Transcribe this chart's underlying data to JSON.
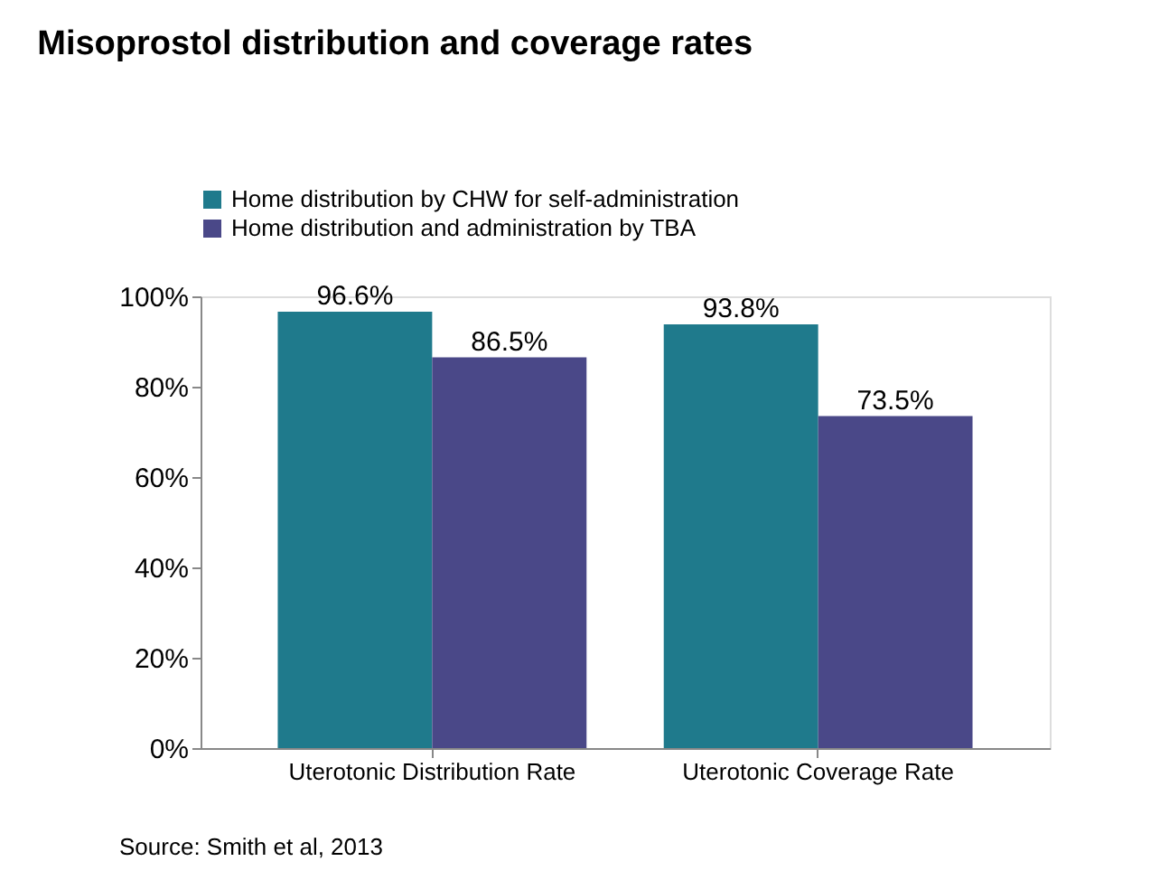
{
  "chart_data": {
    "type": "bar",
    "title": "Misoprostol distribution and coverage rates",
    "categories": [
      "Uterotonic Distribution Rate",
      "Uterotonic Coverage Rate"
    ],
    "series": [
      {
        "name": "Home distribution by CHW for self-administration",
        "color": "#1f7a8c",
        "values": [
          96.6,
          93.8
        ],
        "value_labels": [
          "96.6%",
          "93.8%"
        ]
      },
      {
        "name": "Home distribution and administration by TBA",
        "color": "#4a4888",
        "values": [
          86.5,
          73.5
        ],
        "value_labels": [
          "86.5%",
          "73.5%"
        ]
      }
    ],
    "ylim": [
      0,
      100
    ],
    "yticks": [
      {
        "value": 0,
        "label": "0%"
      },
      {
        "value": 20,
        "label": "20%"
      },
      {
        "value": 40,
        "label": "40%"
      },
      {
        "value": 60,
        "label": "60%"
      },
      {
        "value": 80,
        "label": "80%"
      },
      {
        "value": 100,
        "label": "100%"
      }
    ],
    "grid": false,
    "legend": "top left",
    "annotations": [
      "Source: Smith et al, 2013"
    ]
  }
}
